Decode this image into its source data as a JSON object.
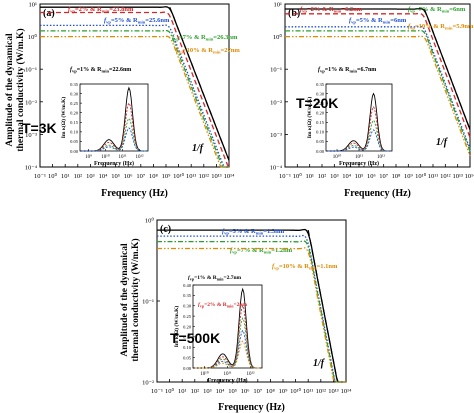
{
  "chart_data": [
    {
      "panel": "(a)",
      "type": "line",
      "xscale": "log",
      "yscale": "log",
      "xlabel": "Frequency (Hz)",
      "ylabel": "Amplitude of the dynamical thermal conductivity (W/m.K)",
      "x_ticks": [
        "10⁻¹",
        "10⁰",
        "10¹",
        "10²",
        "10³",
        "10⁴",
        "10⁵",
        "10⁶",
        "10⁷",
        "10⁸",
        "10⁹",
        "10¹⁰",
        "10¹¹",
        "10¹²",
        "10¹³",
        "10¹⁴"
      ],
      "y_ticks": [
        "10⁻⁴",
        "10⁻³",
        "10⁻²",
        "10⁻¹",
        "10⁰",
        "10¹"
      ],
      "xlim": [
        0.1,
        100000000000000.0
      ],
      "ylim": [
        0.0001,
        10
      ],
      "temperature": "T=3K",
      "series": [
        {
          "fv": "2%",
          "rmin": "23.8nm",
          "color": "#d62728",
          "style": "dashed",
          "plateau": 5.5
        },
        {
          "fv": "5%",
          "rmin": "25.6nm",
          "color": "#1f4fd0",
          "style": "dotted",
          "plateau": 2.2
        },
        {
          "fv": "7%",
          "rmin": "26.3nm",
          "color": "#2ca02c",
          "style": "dashdot",
          "plateau": 1.5
        },
        {
          "fv": "10%",
          "rmin": "27nm",
          "color": "#e08a00",
          "style": "dashdotdot",
          "plateau": 1.0
        }
      ],
      "bulk_plateau": 8.0,
      "cutoff_hz": 2000000000.0,
      "slope_label": "1/f",
      "inset": {
        "xlabel": "Frequency (Hz)",
        "ylabel": "Im κ(Ω) (W/m.K)",
        "x_ticks": [
          "10⁹",
          "10¹⁰",
          "10¹¹",
          "10¹²"
        ],
        "y_ticks": [
          "0.00",
          "0.05",
          "0.10",
          "0.15",
          "0.20",
          "0.25",
          "0.30",
          "0.35"
        ],
        "ylim": [
          0,
          0.35
        ],
        "label_fv": "1%",
        "label_rmin": "22.6nm",
        "peaks": [
          0.33,
          0.25,
          0.17,
          0.12
        ]
      }
    },
    {
      "panel": "(b)",
      "type": "line",
      "xscale": "log",
      "yscale": "log",
      "xlabel": "Frequency (Hz)",
      "x_ticks": [
        "10⁻¹",
        "10⁰",
        "10¹",
        "10²",
        "10³",
        "10⁴",
        "10⁵",
        "10⁶",
        "10⁷",
        "10⁸",
        "10⁹",
        "10¹⁰",
        "10¹¹",
        "10¹²",
        "10¹³",
        "10¹⁴"
      ],
      "y_ticks": [
        "10⁻⁴",
        "10⁻³",
        "10⁻²",
        "10⁻¹",
        "10⁰",
        "10¹"
      ],
      "xlim": [
        0.1,
        100000000000000.0
      ],
      "ylim": [
        0.0001,
        10
      ],
      "temperature": "T=20K",
      "series": [
        {
          "fv": "2%",
          "rmin": "6.2nm",
          "color": "#d62728",
          "style": "dashed",
          "plateau": 5.0
        },
        {
          "fv": "5%",
          "rmin": "6nm",
          "color": "#1f4fd0",
          "style": "dotted",
          "plateau": 2.0
        },
        {
          "fv": "7%",
          "rmin": "6nm",
          "color": "#2ca02c",
          "style": "dashdot",
          "plateau": 1.5
        },
        {
          "fv": "10%",
          "rmin": "5.9nm",
          "color": "#e08a00",
          "style": "dashdotdot",
          "plateau": 1.0
        }
      ],
      "bulk_plateau": 7.0,
      "cutoff_hz": 20000000000.0,
      "slope_label": "1/f",
      "inset": {
        "xlabel": "Frequency (Hz)",
        "ylabel": "Im κ(Ω) (W/m.K)",
        "x_ticks": [
          "10¹⁰",
          "10¹¹",
          "10¹²"
        ],
        "y_ticks": [
          "0.00",
          "0.05",
          "0.10",
          "0.15",
          "0.20",
          "0.25",
          "0.30",
          "0.35"
        ],
        "ylim": [
          0,
          0.35
        ],
        "label_fv": "1%",
        "label_rmin": "6.7nm",
        "peaks": [
          0.3,
          0.23,
          0.16,
          0.11
        ]
      }
    },
    {
      "panel": "(c)",
      "type": "line",
      "xscale": "log",
      "yscale": "log",
      "xlabel": "Frequency (Hz)",
      "ylabel": "Amplitude of the dynamical thermal conductivity (W/m.K)",
      "x_ticks": [
        "10⁻¹",
        "10⁰",
        "10¹",
        "10²",
        "10³",
        "10⁴",
        "10⁵",
        "10⁶",
        "10⁷",
        "10⁸",
        "10⁹",
        "10¹⁰",
        "10¹¹",
        "10¹²",
        "10¹³",
        "10¹⁴"
      ],
      "y_ticks": [
        "10⁻²",
        "10⁻¹",
        "10⁰"
      ],
      "xlim": [
        0.1,
        100000000000000.0
      ],
      "ylim": [
        0.01,
        3
      ],
      "temperature": "T=500K",
      "series": [
        {
          "fv": "5%",
          "rmin": "1.3nm",
          "color": "#1f4fd0",
          "style": "dotted",
          "plateau": 1.7
        },
        {
          "fv": "7%",
          "rmin": "1.2nm",
          "color": "#2ca02c",
          "style": "dashdot",
          "plateau": 1.4
        },
        {
          "fv": "10%",
          "rmin": "1.1nm",
          "color": "#e08a00",
          "style": "dashdotdot",
          "plateau": 1.1
        }
      ],
      "bulk_plateau": 2.1,
      "cutoff_hz": 100000000000.0,
      "slope_label": "1/f",
      "inset": {
        "xlabel": "Frequency (Hz)",
        "ylabel": "Im κ(Ω) (W/m.K)",
        "x_ticks": [
          "10¹⁰",
          "10¹¹",
          "10¹²"
        ],
        "y_ticks": [
          "0.00",
          "0.05",
          "0.10",
          "0.15",
          "0.20",
          "0.25",
          "0.30",
          "0.35",
          "0.40"
        ],
        "ylim": [
          0,
          0.4
        ],
        "label1_fv": "1%",
        "label1_rmin": "2.7nm",
        "label2_fv": "2%",
        "label2_rmin": "2nm",
        "peaks": [
          0.38,
          0.3,
          0.24,
          0.18,
          0.13
        ]
      }
    }
  ]
}
